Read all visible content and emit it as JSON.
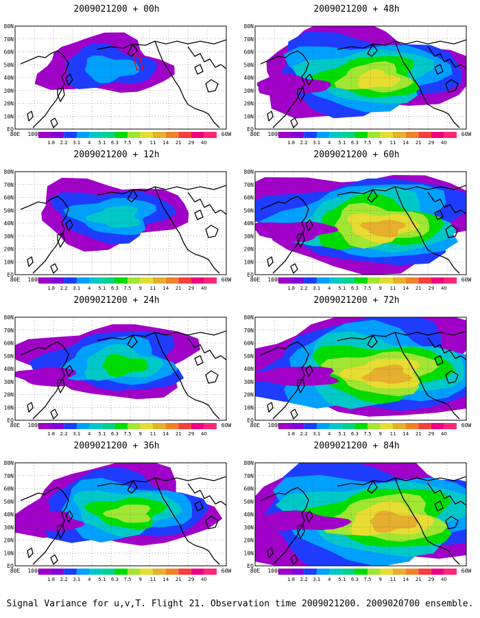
{
  "panels": [
    {
      "title": "2009021200 + 00h",
      "level": 0
    },
    {
      "title": "2009021200 + 48h",
      "level": 4
    },
    {
      "title": "2009021200 + 12h",
      "level": 1
    },
    {
      "title": "2009021200 + 60h",
      "level": 5
    },
    {
      "title": "2009021200 + 24h",
      "level": 2
    },
    {
      "title": "2009021200 + 72h",
      "level": 6
    },
    {
      "title": "2009021200 + 36h",
      "level": 3
    },
    {
      "title": "2009021200 + 84h",
      "level": 7
    }
  ],
  "lat_labels": [
    "80N",
    "70N",
    "60N",
    "50N",
    "40N",
    "30N",
    "20N",
    "10N",
    "EQ"
  ],
  "lon_labels": [
    "80E",
    "100E",
    "120E",
    "140E",
    "160E",
    "180",
    "160W",
    "140W",
    "120W",
    "100W",
    "80W",
    "60W"
  ],
  "colorbar": {
    "labels": [
      "1.8",
      "2.2",
      "3.1",
      "4",
      "5.1",
      "6.3",
      "7.5",
      "9",
      "11",
      "14",
      "21",
      "29",
      "40"
    ],
    "colors": [
      "#a000c8",
      "#8200dc",
      "#1e3cff",
      "#00a0ff",
      "#00c8c8",
      "#00d28c",
      "#00dc00",
      "#a0e632",
      "#e6dc32",
      "#e6af2d",
      "#f08228",
      "#fa3c3c",
      "#f00082",
      "#ff2878"
    ]
  },
  "caption": "Signal Variance for u,v,T. Flight 21. Observation time 2009021200. 2009020700 ensemble."
}
